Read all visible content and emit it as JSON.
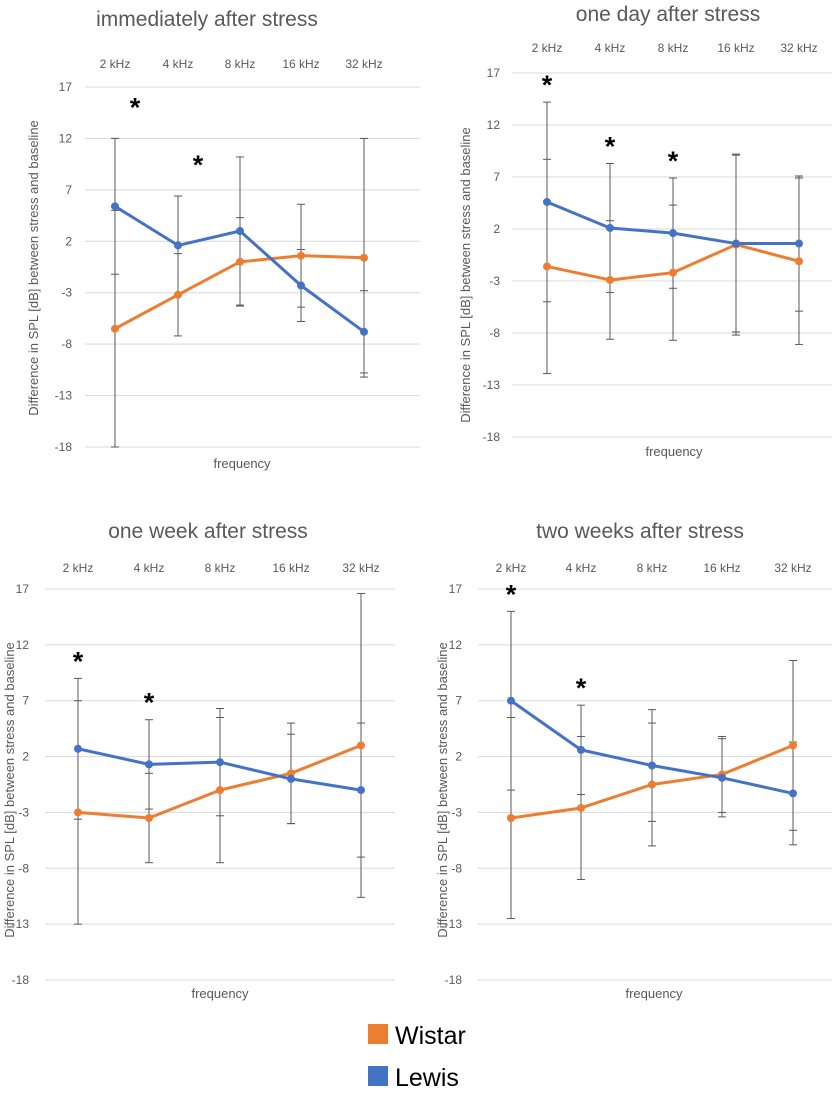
{
  "chart_data": [
    {
      "type": "line",
      "title": "immediately after stress",
      "xlabel": "frequency",
      "ylabel": "Difference in SPL [dB] between stress and baseline",
      "categories": [
        "2 kHz",
        "4 kHz",
        "8 kHz",
        "16 kHz",
        "32 kHz"
      ],
      "y_tick_labels": [
        "17",
        "12",
        "7",
        "2",
        "-3",
        "-8",
        "-13",
        "-18"
      ],
      "ylim": [
        -18,
        17
      ],
      "grid": true,
      "series": [
        {
          "name": "Wistar",
          "values": [
            -6.5,
            -3.2,
            0,
            0.6,
            0.4
          ],
          "error": [
            11.5,
            4.0,
            4.3,
            5.0,
            11.6
          ]
        },
        {
          "name": "Lewis",
          "values": [
            5.4,
            1.6,
            3.0,
            -2.3,
            -6.8
          ],
          "error": [
            6.6,
            4.8,
            7.2,
            3.5,
            4.0
          ]
        }
      ],
      "significance": [
        {
          "category": "2 kHz",
          "label": "*"
        },
        {
          "category": "4 kHz",
          "label": "*"
        }
      ]
    },
    {
      "type": "line",
      "title": "one day after stress",
      "xlabel": "frequency",
      "ylabel": "Difference in SPL [dB] between stress and baseline",
      "categories": [
        "2 kHz",
        "4 kHz",
        "8 kHz",
        "16 kHz",
        "32 kHz"
      ],
      "y_tick_labels": [
        "17",
        "12",
        "7",
        "2",
        "-3",
        "-8",
        "-13",
        "-18"
      ],
      "ylim": [
        -18,
        17
      ],
      "grid": true,
      "series": [
        {
          "name": "Wistar",
          "values": [
            -1.6,
            -2.9,
            -2.2,
            0.5,
            -1.1
          ],
          "error": [
            10.3,
            5.7,
            6.5,
            8.7,
            8.0
          ]
        },
        {
          "name": "Lewis",
          "values": [
            4.6,
            2.1,
            1.6,
            0.6,
            0.6
          ],
          "error": [
            9.6,
            6.2,
            5.3,
            8.5,
            6.5
          ]
        }
      ],
      "significance": [
        {
          "category": "2 kHz",
          "label": "*"
        },
        {
          "category": "4 kHz",
          "label": "*"
        },
        {
          "category": "8 kHz",
          "label": "*"
        }
      ]
    },
    {
      "type": "line",
      "title": "one week after stress",
      "xlabel": "frequency",
      "ylabel": "Difference in SPL [dB] between stress and baseline",
      "categories": [
        "2 kHz",
        "4 kHz",
        "8 kHz",
        "16 kHz",
        "32 kHz"
      ],
      "y_tick_labels": [
        "17",
        "12",
        "7",
        "2",
        "-3",
        "-8",
        "-13",
        "-18"
      ],
      "ylim": [
        -18,
        17
      ],
      "grid": true,
      "series": [
        {
          "name": "Wistar",
          "values": [
            -3.0,
            -3.5,
            -1.0,
            0.5,
            3.0
          ],
          "error": [
            10.0,
            4.0,
            6.5,
            4.5,
            13.6
          ]
        },
        {
          "name": "Lewis",
          "values": [
            2.7,
            1.3,
            1.5,
            0.0,
            -1.0
          ],
          "error": [
            6.3,
            4.0,
            4.8,
            4.0,
            6.0
          ]
        }
      ],
      "significance": [
        {
          "category": "2 kHz",
          "label": "*"
        },
        {
          "category": "4 kHz",
          "label": "*"
        }
      ]
    },
    {
      "type": "line",
      "title": "two weeks after stress",
      "xlabel": "frequency",
      "ylabel": "Difference in SPL [dB] between stress and baseline",
      "categories": [
        "2 kHz",
        "4 kHz",
        "8 kHz",
        "16 kHz",
        "32 kHz"
      ],
      "y_tick_labels": [
        "17",
        "12",
        "7",
        "2",
        "-3",
        "-8",
        "-13",
        "-18"
      ],
      "ylim": [
        -18,
        17
      ],
      "grid": true,
      "series": [
        {
          "name": "Wistar",
          "values": [
            -3.5,
            -2.6,
            -0.5,
            0.4,
            3.0
          ],
          "error": [
            9.0,
            6.4,
            5.5,
            3.4,
            7.6
          ]
        },
        {
          "name": "Lewis",
          "values": [
            7.0,
            2.6,
            1.2,
            0.1,
            -1.3
          ],
          "error": [
            8.0,
            4.0,
            5.0,
            3.5,
            4.6
          ]
        }
      ],
      "significance": [
        {
          "category": "2 kHz",
          "label": "*"
        },
        {
          "category": "4 kHz",
          "label": "*"
        }
      ]
    }
  ],
  "legend": {
    "items": [
      {
        "name": "Wistar",
        "label": "Wistar",
        "color": "#ED7D31"
      },
      {
        "name": "Lewis",
        "label": "Lewis",
        "color": "#4472C4"
      }
    ]
  },
  "colors": {
    "Wistar": "#ED7D31",
    "Lewis": "#4472C4",
    "gridline": "#d9d9d9",
    "errorbar": "#595959"
  }
}
